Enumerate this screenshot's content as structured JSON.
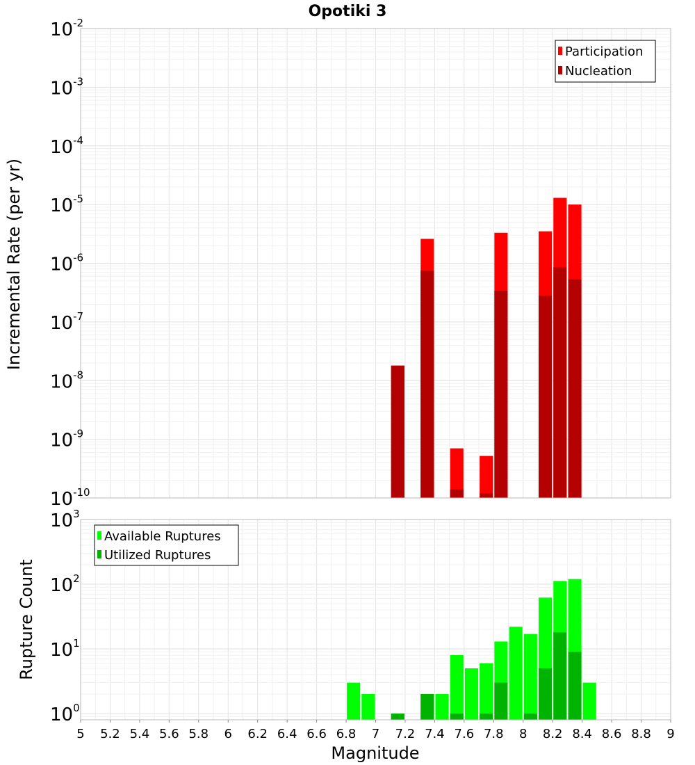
{
  "chart_data": [
    {
      "type": "bar",
      "title": "Opotiki 3",
      "xlabel": "Magnitude",
      "ylabel": "Incremental Rate (per yr)",
      "yscale": "log",
      "ylim": [
        1e-10,
        0.01
      ],
      "xlim": [
        5,
        9
      ],
      "grid": true,
      "legend_position": "top-right",
      "bar_width": 0.09,
      "series": [
        {
          "name": "Participation",
          "color": "#ff0000",
          "points": [
            {
              "x": 7.15,
              "y": 1.8e-08
            },
            {
              "x": 7.35,
              "y": 2.6e-06
            },
            {
              "x": 7.55,
              "y": 7e-10
            },
            {
              "x": 7.75,
              "y": 5.2e-10
            },
            {
              "x": 7.85,
              "y": 3.3e-06
            },
            {
              "x": 8.15,
              "y": 3.5e-06
            },
            {
              "x": 8.25,
              "y": 1.3e-05
            },
            {
              "x": 8.35,
              "y": 1e-05
            }
          ]
        },
        {
          "name": "Nucleation",
          "color": "#b30000",
          "points": [
            {
              "x": 7.15,
              "y": 1.8e-08
            },
            {
              "x": 7.35,
              "y": 7.5e-07
            },
            {
              "x": 7.55,
              "y": 1.4e-10
            },
            {
              "x": 7.75,
              "y": 1.2e-10
            },
            {
              "x": 7.85,
              "y": 3.4e-07
            },
            {
              "x": 8.15,
              "y": 2.8e-07
            },
            {
              "x": 8.25,
              "y": 8.5e-07
            },
            {
              "x": 8.35,
              "y": 5.3e-07
            }
          ]
        }
      ],
      "y_ticks": [
        {
          "value": 1e-10,
          "base": "10",
          "exp": "-10"
        },
        {
          "value": 1e-09,
          "base": "10",
          "exp": "-9"
        },
        {
          "value": 1e-08,
          "base": "10",
          "exp": "-8"
        },
        {
          "value": 1e-07,
          "base": "10",
          "exp": "-7"
        },
        {
          "value": 1e-06,
          "base": "10",
          "exp": "-6"
        },
        {
          "value": 1e-05,
          "base": "10",
          "exp": "-5"
        },
        {
          "value": 0.0001,
          "base": "10",
          "exp": "-4"
        },
        {
          "value": 0.001,
          "base": "10",
          "exp": "-3"
        },
        {
          "value": 0.01,
          "base": "10",
          "exp": "-2"
        }
      ]
    },
    {
      "type": "bar",
      "xlabel": "Magnitude",
      "ylabel": "Rupture Count",
      "yscale": "log",
      "ylim": [
        0.8,
        1000
      ],
      "xlim": [
        5,
        9
      ],
      "grid": true,
      "legend_position": "top-left",
      "bar_width": 0.09,
      "series": [
        {
          "name": "Available Ruptures",
          "color": "#00ff00",
          "points": [
            {
              "x": 6.85,
              "y": 3
            },
            {
              "x": 6.95,
              "y": 2
            },
            {
              "x": 7.15,
              "y": 1
            },
            {
              "x": 7.35,
              "y": 2
            },
            {
              "x": 7.45,
              "y": 2
            },
            {
              "x": 7.55,
              "y": 8
            },
            {
              "x": 7.65,
              "y": 5
            },
            {
              "x": 7.75,
              "y": 6
            },
            {
              "x": 7.85,
              "y": 13
            },
            {
              "x": 7.95,
              "y": 22
            },
            {
              "x": 8.05,
              "y": 17
            },
            {
              "x": 8.15,
              "y": 62
            },
            {
              "x": 8.25,
              "y": 112
            },
            {
              "x": 8.35,
              "y": 120
            },
            {
              "x": 8.45,
              "y": 3
            }
          ]
        },
        {
          "name": "Utilized Ruptures",
          "color": "#00b300",
          "points": [
            {
              "x": 7.15,
              "y": 1
            },
            {
              "x": 7.35,
              "y": 2
            },
            {
              "x": 7.55,
              "y": 1
            },
            {
              "x": 7.75,
              "y": 1
            },
            {
              "x": 7.85,
              "y": 3
            },
            {
              "x": 8.05,
              "y": 1
            },
            {
              "x": 8.15,
              "y": 5
            },
            {
              "x": 8.25,
              "y": 18
            },
            {
              "x": 8.35,
              "y": 9
            }
          ]
        }
      ],
      "y_ticks": [
        {
          "value": 1,
          "base": "10",
          "exp": "0"
        },
        {
          "value": 10,
          "base": "10",
          "exp": "1"
        },
        {
          "value": 100,
          "base": "10",
          "exp": "2"
        },
        {
          "value": 1000,
          "base": "10",
          "exp": "3"
        }
      ],
      "x_ticks": [
        "5",
        "5.2",
        "5.4",
        "5.6",
        "5.8",
        "6",
        "6.2",
        "6.4",
        "6.6",
        "6.8",
        "7",
        "7.2",
        "7.4",
        "7.6",
        "7.8",
        "8",
        "8.2",
        "8.4",
        "8.6",
        "8.8",
        "9"
      ]
    }
  ]
}
